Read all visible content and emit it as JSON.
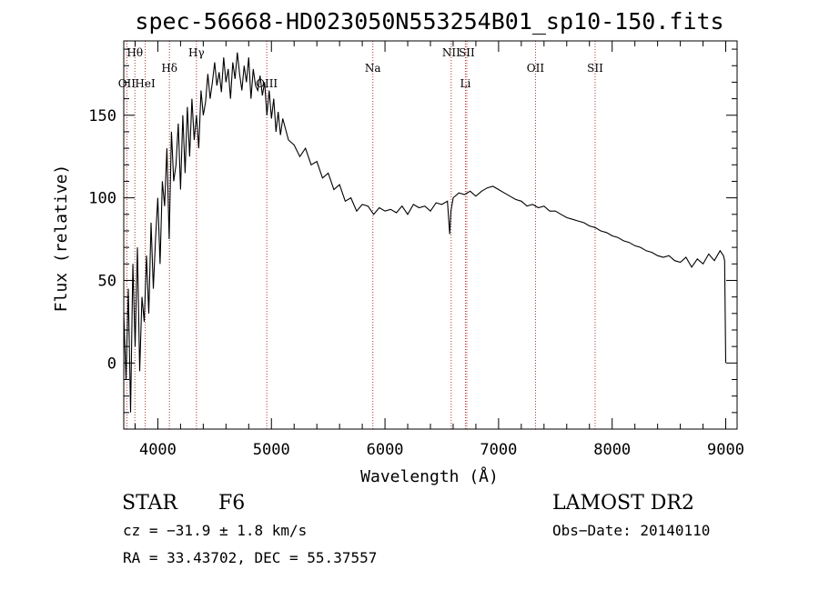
{
  "chart_data": {
    "type": "line",
    "title": "spec-56668-HD023050N553254B01_sp10-150.fits",
    "xlabel": "Wavelength (Å)",
    "ylabel": "Flux (relative)",
    "xlim": [
      3700,
      9100
    ],
    "ylim": [
      -40,
      195
    ],
    "xticks": [
      4000,
      5000,
      6000,
      7000,
      8000,
      9000
    ],
    "yticks": [
      0,
      50,
      100,
      150
    ],
    "series": [
      {
        "x": [
          3700,
          3720,
          3740,
          3760,
          3780,
          3800,
          3820,
          3840,
          3860,
          3880,
          3900,
          3920,
          3940,
          3960,
          3980,
          4000,
          4020,
          4040,
          4060,
          4080,
          4100,
          4120,
          4140,
          4160,
          4180,
          4200,
          4220,
          4240,
          4260,
          4280,
          4300,
          4320,
          4340,
          4360,
          4380,
          4400,
          4420,
          4440,
          4460,
          4480,
          4500,
          4520,
          4540,
          4560,
          4580,
          4600,
          4620,
          4640,
          4660,
          4680,
          4700,
          4720,
          4740,
          4760,
          4780,
          4800,
          4820,
          4840,
          4860,
          4880,
          4900,
          4920,
          4940,
          4960,
          4980,
          5000,
          5020,
          5040,
          5060,
          5080,
          5100,
          5150,
          5200,
          5250,
          5300,
          5350,
          5400,
          5450,
          5500,
          5550,
          5600,
          5650,
          5700,
          5750,
          5800,
          5850,
          5900,
          5950,
          6000,
          6050,
          6100,
          6150,
          6200,
          6250,
          6300,
          6350,
          6400,
          6450,
          6500,
          6550,
          6570,
          6580,
          6600,
          6650,
          6700,
          6750,
          6800,
          6850,
          6900,
          6950,
          7000,
          7050,
          7100,
          7150,
          7200,
          7250,
          7300,
          7350,
          7400,
          7450,
          7500,
          7550,
          7600,
          7650,
          7700,
          7750,
          7800,
          7850,
          7900,
          7950,
          8000,
          8050,
          8100,
          8150,
          8200,
          8250,
          8300,
          8350,
          8400,
          8450,
          8500,
          8550,
          8600,
          8650,
          8700,
          8750,
          8800,
          8850,
          8900,
          8950,
          8980,
          8990,
          9000
        ],
        "values": [
          30,
          -10,
          45,
          -30,
          60,
          10,
          70,
          -5,
          40,
          25,
          65,
          30,
          85,
          45,
          75,
          100,
          60,
          110,
          95,
          130,
          75,
          140,
          110,
          120,
          145,
          105,
          150,
          115,
          155,
          125,
          160,
          135,
          150,
          130,
          165,
          150,
          158,
          175,
          160,
          170,
          182,
          168,
          176,
          164,
          185,
          170,
          178,
          160,
          182,
          172,
          188,
          175,
          165,
          180,
          170,
          185,
          160,
          178,
          168,
          165,
          174,
          162,
          170,
          150,
          165,
          148,
          160,
          140,
          152,
          138,
          148,
          135,
          132,
          125,
          130,
          120,
          122,
          112,
          115,
          105,
          108,
          98,
          100,
          92,
          96,
          95,
          90,
          94,
          92,
          93,
          91,
          95,
          90,
          96,
          94,
          95,
          92,
          97,
          96,
          98,
          78,
          92,
          100,
          103,
          102,
          104,
          101,
          104,
          106,
          107,
          105,
          103,
          101,
          99,
          98,
          95,
          96,
          94,
          95,
          92,
          92,
          90,
          88,
          87,
          86,
          85,
          83,
          82,
          80,
          79,
          77,
          76,
          74,
          73,
          71,
          70,
          68,
          67,
          65,
          64,
          65,
          62,
          61,
          64,
          58,
          63,
          60,
          66,
          62,
          68,
          65,
          62,
          0
        ]
      }
    ],
    "lines": [
      {
        "label": "Hθ",
        "x": 3798,
        "row": 0
      },
      {
        "label": "OII",
        "x": 3727,
        "row": 2
      },
      {
        "label": "HeI",
        "x": 3889,
        "row": 2
      },
      {
        "label": "Hδ",
        "x": 4102,
        "row": 1
      },
      {
        "label": "Hγ",
        "x": 4340,
        "row": 0
      },
      {
        "label": "OIII",
        "x": 4959,
        "row": 2
      },
      {
        "label": "Na",
        "x": 5893,
        "row": 1
      },
      {
        "label": "NII",
        "x": 6583,
        "row": 0
      },
      {
        "label": "SII",
        "x": 6720,
        "row": 0
      },
      {
        "label": "Li",
        "x": 6708,
        "row": 2
      },
      {
        "label": "OII",
        "x": 7325,
        "row": 1
      },
      {
        "label": "SII",
        "x": 7850,
        "row": 1
      }
    ]
  },
  "info": {
    "class_label": "STAR",
    "subclass": "F6",
    "survey": "LAMOST DR2",
    "cz": "cz = −31.9 ± 1.8 km/s",
    "obs_date": "Obs−Date: 20140110",
    "coords": "RA =  33.43702, DEC =  55.37557"
  },
  "colors": {
    "axis": "#000000",
    "spectrum": "#000000",
    "line_marker": "#b03030"
  }
}
